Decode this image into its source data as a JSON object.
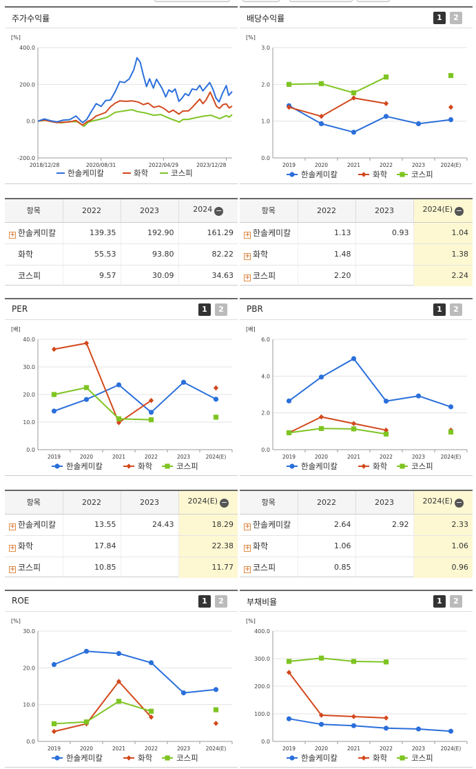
{
  "colors": {
    "company": "#2a6fdb",
    "sector": "#d2481c",
    "kospi": "#7ec422"
  },
  "legend": {
    "company": "한솔케미칼",
    "sector": "화학",
    "kospi": "코스피"
  },
  "page_buttons": [
    "1",
    "2"
  ],
  "panels": {
    "stock": {
      "title": "주가수익률",
      "unit": "[%]"
    },
    "dividend": {
      "title": "배당수익률",
      "unit": "[%]"
    },
    "per": {
      "title": "PER",
      "unit": "[배]"
    },
    "pbr": {
      "title": "PBR",
      "unit": "[배]"
    },
    "roe": {
      "title": "ROE",
      "unit": "[%]"
    },
    "debt": {
      "title": "부채비율",
      "unit": "[%]"
    }
  },
  "tables": {
    "stock": {
      "headers": [
        "항목",
        "2022",
        "2023",
        "2024"
      ],
      "rows": [
        {
          "name": "한솔케미칼",
          "values": [
            "139.35",
            "192.90",
            "161.29"
          ]
        },
        {
          "name": "화학",
          "values": [
            "55.53",
            "93.80",
            "82.22"
          ]
        },
        {
          "name": "코스피",
          "values": [
            "9.57",
            "30.09",
            "34.63"
          ]
        }
      ]
    },
    "dividend": {
      "headers": [
        "항목",
        "2022",
        "2023",
        "2024(E)"
      ],
      "rows": [
        {
          "name": "한솔케미칼",
          "values": [
            "1.13",
            "0.93",
            "1.04"
          ]
        },
        {
          "name": "화학",
          "values": [
            "1.48",
            "",
            "1.38"
          ]
        },
        {
          "name": "코스피",
          "values": [
            "2.20",
            "",
            "2.24"
          ]
        }
      ]
    },
    "per": {
      "headers": [
        "항목",
        "2022",
        "2023",
        "2024(E)"
      ],
      "rows": [
        {
          "name": "한솔케미칼",
          "values": [
            "13.55",
            "24.43",
            "18.29"
          ]
        },
        {
          "name": "화학",
          "values": [
            "17.84",
            "",
            "22.38"
          ]
        },
        {
          "name": "코스피",
          "values": [
            "10.85",
            "",
            "11.77"
          ]
        }
      ]
    },
    "pbr": {
      "headers": [
        "항목",
        "2022",
        "2023",
        "2024(E)"
      ],
      "rows": [
        {
          "name": "한솔케미칼",
          "values": [
            "2.64",
            "2.92",
            "2.33"
          ]
        },
        {
          "name": "화학",
          "values": [
            "1.06",
            "",
            "1.06"
          ]
        },
        {
          "name": "코스피",
          "values": [
            "0.85",
            "",
            "0.96"
          ]
        }
      ]
    }
  },
  "chart_data": [
    {
      "id": "stock",
      "type": "line",
      "title": "주가수익률",
      "ylabel": "[%]",
      "ylim": [
        -200,
        400
      ],
      "yticks": [
        "400.0",
        "200.0",
        "0.0",
        "-200.0"
      ],
      "x_range": [
        "2018-12-28",
        "2024-02-23"
      ],
      "xticks": [
        "2018/12/28",
        "2020/08/31",
        "2022/04/29",
        "2023/12/28"
      ],
      "series": [
        {
          "name": "한솔케미칼",
          "key": "company",
          "points": [
            [
              "2018-12-28",
              0
            ],
            [
              "2019-03-01",
              12
            ],
            [
              "2019-05-01",
              2
            ],
            [
              "2019-07-01",
              -4
            ],
            [
              "2019-09-01",
              6
            ],
            [
              "2019-11-01",
              8
            ],
            [
              "2020-01-01",
              28
            ],
            [
              "2020-03-05",
              -8
            ],
            [
              "2020-04-15",
              10
            ],
            [
              "2020-06-01",
              55
            ],
            [
              "2020-07-15",
              95
            ],
            [
              "2020-09-01",
              80
            ],
            [
              "2020-10-15",
              112
            ],
            [
              "2020-12-01",
              115
            ],
            [
              "2021-01-15",
              160
            ],
            [
              "2021-03-01",
              215
            ],
            [
              "2021-04-15",
              210
            ],
            [
              "2021-06-01",
              230
            ],
            [
              "2021-07-15",
              280
            ],
            [
              "2021-08-15",
              345
            ],
            [
              "2021-09-15",
              320
            ],
            [
              "2021-10-15",
              250
            ],
            [
              "2021-11-15",
              188
            ],
            [
              "2021-12-15",
              230
            ],
            [
              "2022-01-20",
              180
            ],
            [
              "2022-02-20",
              228
            ],
            [
              "2022-04-15",
              178
            ],
            [
              "2022-05-20",
              132
            ],
            [
              "2022-06-20",
              170
            ],
            [
              "2022-07-20",
              158
            ],
            [
              "2022-08-20",
              175
            ],
            [
              "2022-09-25",
              108
            ],
            [
              "2022-10-25",
              125
            ],
            [
              "2022-11-25",
              150
            ],
            [
              "2022-12-28",
              139
            ],
            [
              "2023-02-01",
              175
            ],
            [
              "2023-03-15",
              170
            ],
            [
              "2023-04-15",
              195
            ],
            [
              "2023-05-15",
              165
            ],
            [
              "2023-06-15",
              185
            ],
            [
              "2023-07-20",
              210
            ],
            [
              "2023-08-20",
              175
            ],
            [
              "2023-09-20",
              125
            ],
            [
              "2023-10-20",
              105
            ],
            [
              "2023-11-20",
              150
            ],
            [
              "2023-12-28",
              193
            ],
            [
              "2024-01-20",
              140
            ],
            [
              "2024-02-23",
              161
            ]
          ]
        },
        {
          "name": "화학",
          "key": "sector",
          "points": [
            [
              "2018-12-28",
              0
            ],
            [
              "2019-03-01",
              6
            ],
            [
              "2019-05-01",
              -2
            ],
            [
              "2019-07-01",
              -8
            ],
            [
              "2019-09-01",
              -6
            ],
            [
              "2019-11-01",
              -4
            ],
            [
              "2020-01-01",
              4
            ],
            [
              "2020-03-05",
              -22
            ],
            [
              "2020-04-15",
              -4
            ],
            [
              "2020-06-01",
              8
            ],
            [
              "2020-07-15",
              28
            ],
            [
              "2020-09-01",
              38
            ],
            [
              "2020-10-15",
              48
            ],
            [
              "2020-12-01",
              78
            ],
            [
              "2021-01-15",
              98
            ],
            [
              "2021-03-01",
              110
            ],
            [
              "2021-05-01",
              108
            ],
            [
              "2021-07-01",
              110
            ],
            [
              "2021-09-01",
              103
            ],
            [
              "2021-10-15",
              90
            ],
            [
              "2021-12-01",
              98
            ],
            [
              "2022-01-25",
              75
            ],
            [
              "2022-03-15",
              82
            ],
            [
              "2022-05-01",
              70
            ],
            [
              "2022-06-20",
              48
            ],
            [
              "2022-08-01",
              60
            ],
            [
              "2022-09-25",
              38
            ],
            [
              "2022-11-01",
              55
            ],
            [
              "2022-12-28",
              56
            ],
            [
              "2023-02-01",
              75
            ],
            [
              "2023-04-15",
              120
            ],
            [
              "2023-05-15",
              95
            ],
            [
              "2023-06-15",
              115
            ],
            [
              "2023-07-25",
              158
            ],
            [
              "2023-08-25",
              120
            ],
            [
              "2023-09-25",
              80
            ],
            [
              "2023-10-25",
              70
            ],
            [
              "2023-11-25",
              90
            ],
            [
              "2023-12-28",
              94
            ],
            [
              "2024-01-25",
              72
            ],
            [
              "2024-02-23",
              82
            ]
          ]
        },
        {
          "name": "코스피",
          "key": "kospi",
          "points": [
            [
              "2018-12-28",
              0
            ],
            [
              "2019-04-01",
              6
            ],
            [
              "2019-06-01",
              -2
            ],
            [
              "2019-08-15",
              -9
            ],
            [
              "2019-11-01",
              -2
            ],
            [
              "2020-01-15",
              -3
            ],
            [
              "2020-03-19",
              -28
            ],
            [
              "2020-05-01",
              -5
            ],
            [
              "2020-07-01",
              4
            ],
            [
              "2020-09-01",
              12
            ],
            [
              "2020-11-01",
              22
            ],
            [
              "2021-01-15",
              48
            ],
            [
              "2021-03-01",
              52
            ],
            [
              "2021-06-25",
              62
            ],
            [
              "2021-08-20",
              52
            ],
            [
              "2021-11-01",
              45
            ],
            [
              "2022-01-25",
              32
            ],
            [
              "2022-04-01",
              36
            ],
            [
              "2022-06-30",
              14
            ],
            [
              "2022-09-30",
              -5
            ],
            [
              "2022-11-01",
              9
            ],
            [
              "2022-12-28",
              10
            ],
            [
              "2023-03-01",
              18
            ],
            [
              "2023-06-01",
              28
            ],
            [
              "2023-08-01",
              32
            ],
            [
              "2023-10-25",
              14
            ],
            [
              "2023-12-28",
              30
            ],
            [
              "2024-01-25",
              22
            ],
            [
              "2024-02-23",
              35
            ]
          ]
        }
      ]
    },
    {
      "id": "dividend",
      "type": "line",
      "title": "배당수익률",
      "ylabel": "[%]",
      "categories": [
        "2019",
        "2020",
        "2021",
        "2022",
        "2023",
        "2024(E)"
      ],
      "ylim": [
        0,
        3
      ],
      "yticks": [
        "3.0",
        "2.0",
        "1.0",
        "0.0"
      ],
      "series": [
        {
          "name": "한솔케미칼",
          "key": "company",
          "values": [
            1.42,
            0.93,
            0.7,
            1.13,
            0.93,
            1.04
          ]
        },
        {
          "name": "화학",
          "key": "sector",
          "values": [
            1.38,
            1.13,
            1.63,
            1.48,
            null,
            1.38
          ]
        },
        {
          "name": "코스피",
          "key": "kospi",
          "values": [
            2.0,
            2.02,
            1.77,
            2.2,
            null,
            2.24
          ]
        }
      ]
    },
    {
      "id": "per",
      "type": "line",
      "title": "PER",
      "ylabel": "[배]",
      "categories": [
        "2019",
        "2020",
        "2021",
        "2022",
        "2023",
        "2024(E)"
      ],
      "ylim": [
        0,
        40
      ],
      "yticks": [
        "40.0",
        "30.0",
        "20.0",
        "10.0",
        "0.0"
      ],
      "series": [
        {
          "name": "한솔케미칼",
          "key": "company",
          "values": [
            14.0,
            18.2,
            23.5,
            13.55,
            24.43,
            18.29
          ]
        },
        {
          "name": "화학",
          "key": "sector",
          "values": [
            36.4,
            38.6,
            9.8,
            17.84,
            null,
            22.38
          ]
        },
        {
          "name": "코스피",
          "key": "kospi",
          "values": [
            20.0,
            22.5,
            11.2,
            10.85,
            null,
            11.77
          ]
        }
      ]
    },
    {
      "id": "pbr",
      "type": "line",
      "title": "PBR",
      "ylabel": "[배]",
      "categories": [
        "2019",
        "2020",
        "2021",
        "2022",
        "2023",
        "2024(E)"
      ],
      "ylim": [
        0,
        6
      ],
      "yticks": [
        "6.0",
        "4.0",
        "2.0",
        "0.0"
      ],
      "series": [
        {
          "name": "한솔케미칼",
          "key": "company",
          "values": [
            2.65,
            3.95,
            4.95,
            2.64,
            2.92,
            2.33
          ]
        },
        {
          "name": "화학",
          "key": "sector",
          "values": [
            0.92,
            1.78,
            1.42,
            1.06,
            null,
            1.06
          ]
        },
        {
          "name": "코스피",
          "key": "kospi",
          "values": [
            0.92,
            1.15,
            1.13,
            0.85,
            null,
            0.96
          ]
        }
      ]
    },
    {
      "id": "roe",
      "type": "line",
      "title": "ROE",
      "ylabel": "[%]",
      "categories": [
        "2019",
        "2020",
        "2021",
        "2022",
        "2023",
        "2024(E)"
      ],
      "ylim": [
        0,
        30
      ],
      "yticks": [
        "30.0",
        "20.0",
        "10.0",
        "0.0"
      ],
      "series": [
        {
          "name": "한솔케미칼",
          "key": "company",
          "values": [
            20.9,
            24.5,
            23.9,
            21.4,
            13.2,
            14.1
          ]
        },
        {
          "name": "화학",
          "key": "sector",
          "values": [
            2.7,
            4.8,
            16.3,
            6.6,
            null,
            4.9
          ]
        },
        {
          "name": "코스피",
          "key": "kospi",
          "values": [
            4.8,
            5.3,
            10.9,
            8.2,
            null,
            8.6
          ]
        }
      ]
    },
    {
      "id": "debt",
      "type": "line",
      "title": "부채비율",
      "ylabel": "[%]",
      "categories": [
        "2019",
        "2020",
        "2021",
        "2022",
        "2023",
        "2024(E)"
      ],
      "ylim": [
        0,
        400
      ],
      "yticks": [
        "400.0",
        "300.0",
        "200.0",
        "100.0",
        "0.0"
      ],
      "series": [
        {
          "name": "한솔케미칼",
          "key": "company",
          "values": [
            82,
            62,
            57,
            48,
            45,
            37
          ]
        },
        {
          "name": "화학",
          "key": "sector",
          "values": [
            250,
            95,
            90,
            85,
            null,
            null
          ]
        },
        {
          "name": "코스피",
          "key": "kospi",
          "values": [
            290,
            302,
            290,
            288,
            null,
            null
          ]
        }
      ]
    }
  ]
}
